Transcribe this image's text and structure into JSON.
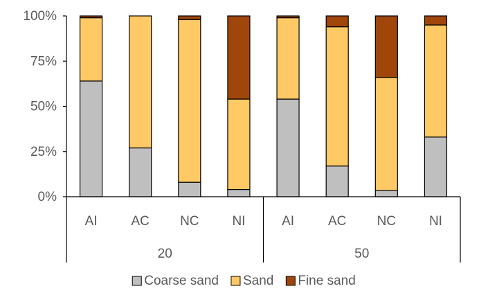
{
  "chart_data": {
    "type": "bar",
    "stacked": true,
    "percent": true,
    "groups": [
      {
        "label": "20",
        "categories": [
          "AI",
          "AC",
          "NC",
          "NI"
        ]
      },
      {
        "label": "50",
        "categories": [
          "AI",
          "AC",
          "NC",
          "NI"
        ]
      }
    ],
    "series": [
      {
        "name": "Coarse sand",
        "color": "#bfbfbf",
        "values": [
          64,
          27,
          8,
          4,
          54,
          17,
          3.5,
          33
        ]
      },
      {
        "name": "Sand",
        "color": "#ffc966",
        "values": [
          35,
          73,
          90,
          50,
          45,
          77,
          62.5,
          62
        ]
      },
      {
        "name": "Fine sand",
        "color": "#a0460a",
        "values": [
          1,
          0,
          2,
          46,
          1,
          6,
          34,
          5
        ]
      }
    ],
    "y_ticks": [
      "0%",
      "25%",
      "50%",
      "75%",
      "100%"
    ],
    "ylim": [
      0,
      100
    ],
    "legend_position": "bottom",
    "grid": false
  }
}
